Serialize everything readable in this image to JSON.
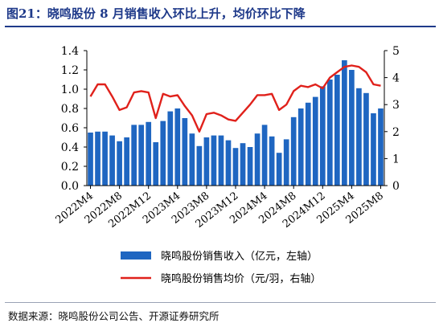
{
  "figure": {
    "title": "图21：晓鸣股份 8 月销售收入环比上升，均价环比下降",
    "source": "数据来源：晓鸣股份公司公告、开源证券研究所"
  },
  "colors": {
    "bar": "#1f66c1",
    "line": "#e0211b",
    "title": "#1f3a8a",
    "axis": "#000000"
  },
  "chart_data": {
    "type": "bar",
    "combo": "bar+line",
    "x_tick_labels": [
      "2022M4",
      "2022M8",
      "2022M12",
      "2023M4",
      "2023M8",
      "2023M12",
      "2024M4",
      "2024M8",
      "2024M12",
      "2025M4",
      "2025M8"
    ],
    "x": [
      "2022M4",
      "2022M5",
      "2022M6",
      "2022M7",
      "2022M8",
      "2022M9",
      "2022M10",
      "2022M11",
      "2022M12",
      "2023M1",
      "2023M2",
      "2023M3",
      "2023M4",
      "2023M5",
      "2023M6",
      "2023M7",
      "2023M8",
      "2023M9",
      "2023M10",
      "2023M11",
      "2023M12",
      "2024M1",
      "2024M2",
      "2024M3",
      "2024M4",
      "2024M5",
      "2024M6",
      "2024M7",
      "2024M8",
      "2024M9",
      "2024M10",
      "2024M11",
      "2024M12",
      "2025M1",
      "2025M2",
      "2025M3",
      "2025M4",
      "2025M5",
      "2025M6",
      "2025M7",
      "2025M8"
    ],
    "series": [
      {
        "name": "晓鸣股份销售收入（亿元，左轴）",
        "type": "bar",
        "axis": "left",
        "values": [
          0.55,
          0.56,
          0.56,
          0.52,
          0.46,
          0.5,
          0.63,
          0.63,
          0.66,
          0.45,
          0.67,
          0.77,
          0.8,
          0.7,
          0.54,
          0.41,
          0.5,
          0.52,
          0.52,
          0.47,
          0.39,
          0.44,
          0.4,
          0.54,
          0.63,
          0.51,
          0.34,
          0.48,
          0.71,
          0.8,
          0.86,
          0.92,
          1.03,
          1.1,
          1.15,
          1.3,
          1.2,
          1.01,
          0.96,
          0.75,
          0.8
        ]
      },
      {
        "name": "晓鸣股份销售均价（元/羽，右轴）",
        "type": "line",
        "axis": "right",
        "values": [
          3.3,
          3.75,
          3.75,
          3.3,
          2.8,
          2.9,
          3.45,
          3.5,
          3.45,
          2.5,
          3.4,
          3.3,
          3.35,
          2.95,
          2.6,
          2.0,
          2.65,
          2.7,
          2.6,
          2.45,
          2.4,
          2.7,
          3.0,
          3.35,
          3.35,
          3.4,
          2.8,
          3.0,
          3.5,
          3.7,
          3.65,
          3.75,
          3.6,
          4.0,
          4.2,
          4.4,
          4.45,
          4.4,
          4.2,
          3.75,
          3.7
        ]
      }
    ],
    "y_left": {
      "ylim": [
        0,
        1.4
      ],
      "ticks": [
        "0.0",
        "0.2",
        "0.4",
        "0.6",
        "0.8",
        "1.0",
        "1.2",
        "1.4"
      ]
    },
    "y_right": {
      "ylim": [
        0,
        5
      ],
      "ticks": [
        "0",
        "1",
        "2",
        "3",
        "4",
        "5"
      ]
    },
    "grid": false,
    "legend_position": "bottom"
  }
}
